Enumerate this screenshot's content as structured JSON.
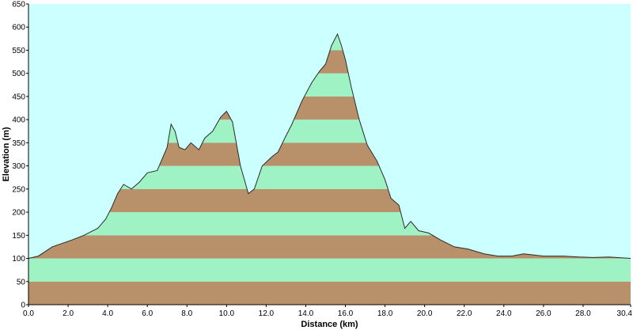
{
  "chart_data": {
    "type": "area",
    "title": "",
    "xlabel": "Distance  (km)",
    "ylabel": "Elevation (m)",
    "xlim": [
      0,
      30.4
    ],
    "ylim": [
      0,
      650
    ],
    "x_ticks": [
      "0.0",
      "2.0",
      "4.0",
      "6.0",
      "8.0",
      "10.0",
      "12.0",
      "14.0",
      "16.0",
      "18.0",
      "20.0",
      "22.0",
      "24.0",
      "26.0",
      "28.0",
      "30.4"
    ],
    "x_tick_values": [
      0,
      2,
      4,
      6,
      8,
      10,
      12,
      14,
      16,
      18,
      20,
      22,
      24,
      26,
      28,
      30.4
    ],
    "y_ticks": [
      "0",
      "50",
      "100",
      "150",
      "200",
      "250",
      "300",
      "350",
      "400",
      "450",
      "500",
      "550",
      "600",
      "650"
    ],
    "y_tick_values": [
      0,
      50,
      100,
      150,
      200,
      250,
      300,
      350,
      400,
      450,
      500,
      550,
      600,
      650
    ],
    "grid": false,
    "colors": {
      "plot_background": "#ccffff",
      "band_brown": "#b8906a",
      "band_green": "#9ff2c4",
      "profile_line": "#2b2b2b"
    },
    "series": [
      {
        "x": [
          0,
          0.5,
          1.2,
          2.2,
          2.8,
          3.5,
          3.9,
          4.2,
          4.5,
          4.8,
          5.2,
          5.6,
          6.0,
          6.5,
          7.0,
          7.2,
          7.4,
          7.6,
          7.9,
          8.2,
          8.6,
          8.9,
          9.3,
          9.7,
          10.0,
          10.3,
          10.7,
          11.1,
          11.4,
          11.8,
          12.3,
          12.6,
          13.0,
          13.3,
          13.8,
          14.3,
          14.7,
          15.0,
          15.3,
          15.6,
          15.8,
          16.0,
          16.3,
          16.7,
          17.1,
          17.6,
          18.0,
          18.3,
          18.7,
          19.0,
          19.3,
          19.7,
          20.2,
          20.8,
          21.5,
          22.2,
          23.0,
          23.7,
          24.4,
          25.0,
          26.0,
          27.0,
          27.8,
          28.5,
          29.3,
          30.4
        ],
        "y": [
          100,
          105,
          125,
          140,
          150,
          165,
          185,
          210,
          240,
          260,
          250,
          265,
          285,
          290,
          340,
          390,
          375,
          340,
          335,
          350,
          335,
          360,
          375,
          405,
          418,
          395,
          300,
          240,
          250,
          300,
          320,
          330,
          365,
          390,
          440,
          480,
          505,
          520,
          560,
          585,
          560,
          530,
          470,
          400,
          345,
          310,
          270,
          230,
          215,
          165,
          180,
          160,
          155,
          140,
          125,
          120,
          110,
          105,
          105,
          110,
          105,
          105,
          103,
          102,
          103,
          100
        ]
      }
    ]
  }
}
